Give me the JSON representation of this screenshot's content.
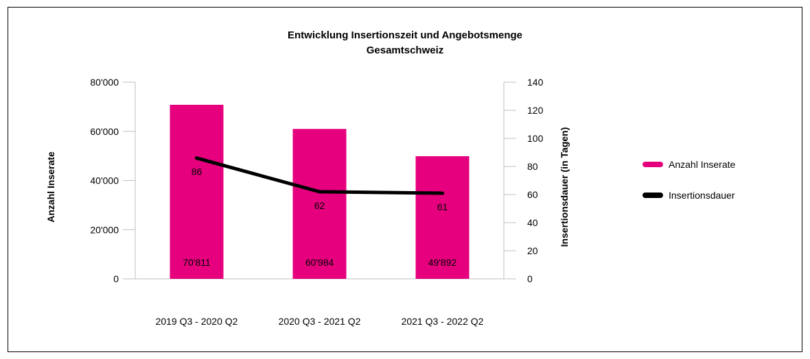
{
  "chart_data": {
    "type": "bar",
    "title": "Entwicklung Insertionszeit und Angebotsmenge",
    "subtitle": "Gesamtschweiz",
    "categories": [
      "2019 Q3 - 2020 Q2",
      "2020 Q3 - 2021 Q2",
      "2021 Q3 - 2022 Q2"
    ],
    "series": [
      {
        "name": "Anzahl Inserate",
        "type": "bar",
        "axis": "left",
        "color": "#e6007e",
        "values": [
          70811,
          60984,
          49892
        ],
        "labels": [
          "70'811",
          "60'984",
          "49'892"
        ]
      },
      {
        "name": "Insertionsdauer",
        "type": "line",
        "axis": "right",
        "color": "#000000",
        "values": [
          86,
          62,
          61
        ],
        "labels": [
          "86",
          "62",
          "61"
        ]
      }
    ],
    "y_left": {
      "label": "Anzahl Inserate",
      "lim": [
        0,
        80000
      ],
      "ticks": [
        0,
        20000,
        40000,
        60000,
        80000
      ],
      "tick_labels": [
        "0",
        "20'000",
        "40'000",
        "60'000",
        "80'000"
      ]
    },
    "y_right": {
      "label": "Insertionsdauer (in Tagen)",
      "lim": [
        0,
        140
      ],
      "ticks": [
        0,
        20,
        40,
        60,
        80,
        100,
        120,
        140
      ],
      "tick_labels": [
        "0",
        "20",
        "40",
        "60",
        "80",
        "100",
        "120",
        "140"
      ]
    },
    "grid": false,
    "legend": "right"
  }
}
